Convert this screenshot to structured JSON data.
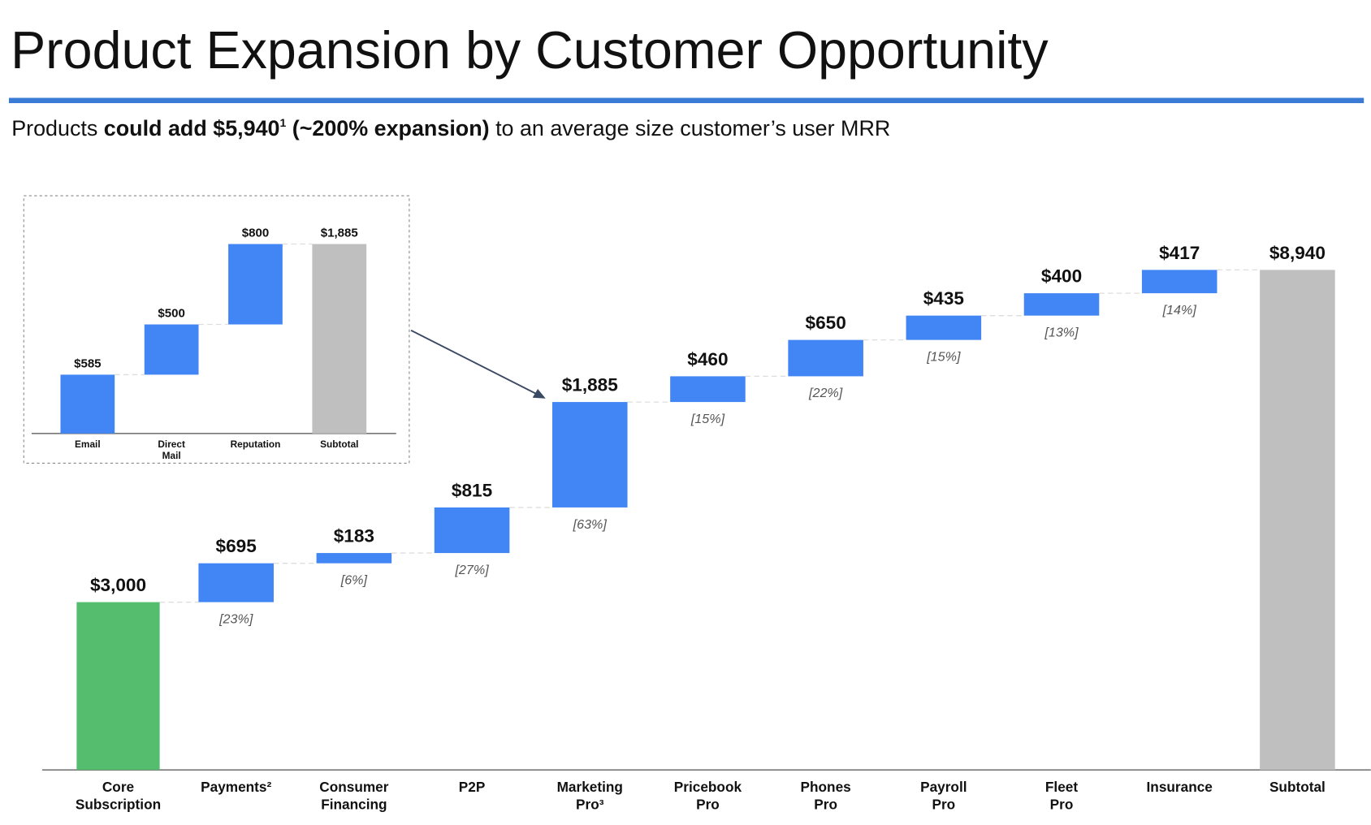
{
  "chart_data": [
    {
      "type": "waterfall",
      "title": "Product Expansion by Customer Opportunity",
      "subtitle": [
        "Products ",
        "could add $5,940",
        "1",
        " (~200% expansion)",
        " to an average size customer’s user MRR"
      ],
      "categories": [
        "Core Subscription",
        "Payments²",
        "Consumer Financing",
        "P2P",
        "Marketing Pro³",
        "Pricebook Pro",
        "Phones Pro",
        "Payroll Pro",
        "Fleet Pro",
        "Insurance",
        "Subtotal"
      ],
      "values": [
        3000,
        695,
        183,
        815,
        1885,
        460,
        650,
        435,
        400,
        417,
        8940
      ],
      "value_labels": [
        "$3,000",
        "$695",
        "$183",
        "$815",
        "$1,885",
        "$460",
        "$650",
        "$435",
        "$400",
        "$417",
        "$8,940"
      ],
      "share_labels": [
        null,
        "[23%]",
        "[6%]",
        "[27%]",
        "[63%]",
        "[15%]",
        "[22%]",
        "[15%]",
        "[13%]",
        "[14%]",
        null
      ],
      "kinds": [
        "base",
        "delta",
        "delta",
        "delta",
        "delta",
        "delta",
        "delta",
        "delta",
        "delta",
        "delta",
        "total"
      ],
      "colors": {
        "base": "#55bd6e",
        "delta": "#4285f4",
        "total": "#bfbfbf"
      },
      "ylim": [
        0,
        10000
      ]
    },
    {
      "type": "waterfall",
      "categories": [
        "Email",
        "Direct Mail",
        "Reputation",
        "Subtotal"
      ],
      "values": [
        585,
        500,
        800,
        1885
      ],
      "value_labels": [
        "$585",
        "$500",
        "$800",
        "$1,885"
      ],
      "kinds": [
        "delta",
        "delta",
        "delta",
        "total"
      ],
      "colors": {
        "delta": "#4285f4",
        "total": "#bfbfbf"
      },
      "ylim": [
        0,
        2200
      ]
    }
  ]
}
